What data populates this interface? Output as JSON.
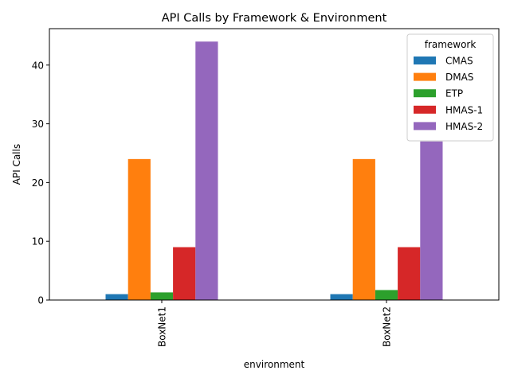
{
  "chart_data": {
    "type": "bar",
    "title": "API Calls by Framework & Environment",
    "xlabel": "environment",
    "ylabel": "API Calls",
    "categories": [
      "BoxNet1",
      "BoxNet2"
    ],
    "ylim": [
      0,
      46.2
    ],
    "yticks": [
      0,
      10,
      20,
      30,
      40
    ],
    "grid": false,
    "legend": {
      "title": "framework",
      "placement": "top-right"
    },
    "series": [
      {
        "name": "CMAS",
        "color": "#1f77b4",
        "values": [
          1.0,
          1.0
        ]
      },
      {
        "name": "DMAS",
        "color": "#ff7f0e",
        "values": [
          24.0,
          24.0
        ]
      },
      {
        "name": "ETP",
        "color": "#2ca02c",
        "values": [
          1.3,
          1.7
        ]
      },
      {
        "name": "HMAS-1",
        "color": "#d62728",
        "values": [
          9.0,
          9.0
        ]
      },
      {
        "name": "HMAS-2",
        "color": "#9467bd",
        "values": [
          44.0,
          27.0
        ]
      }
    ]
  }
}
